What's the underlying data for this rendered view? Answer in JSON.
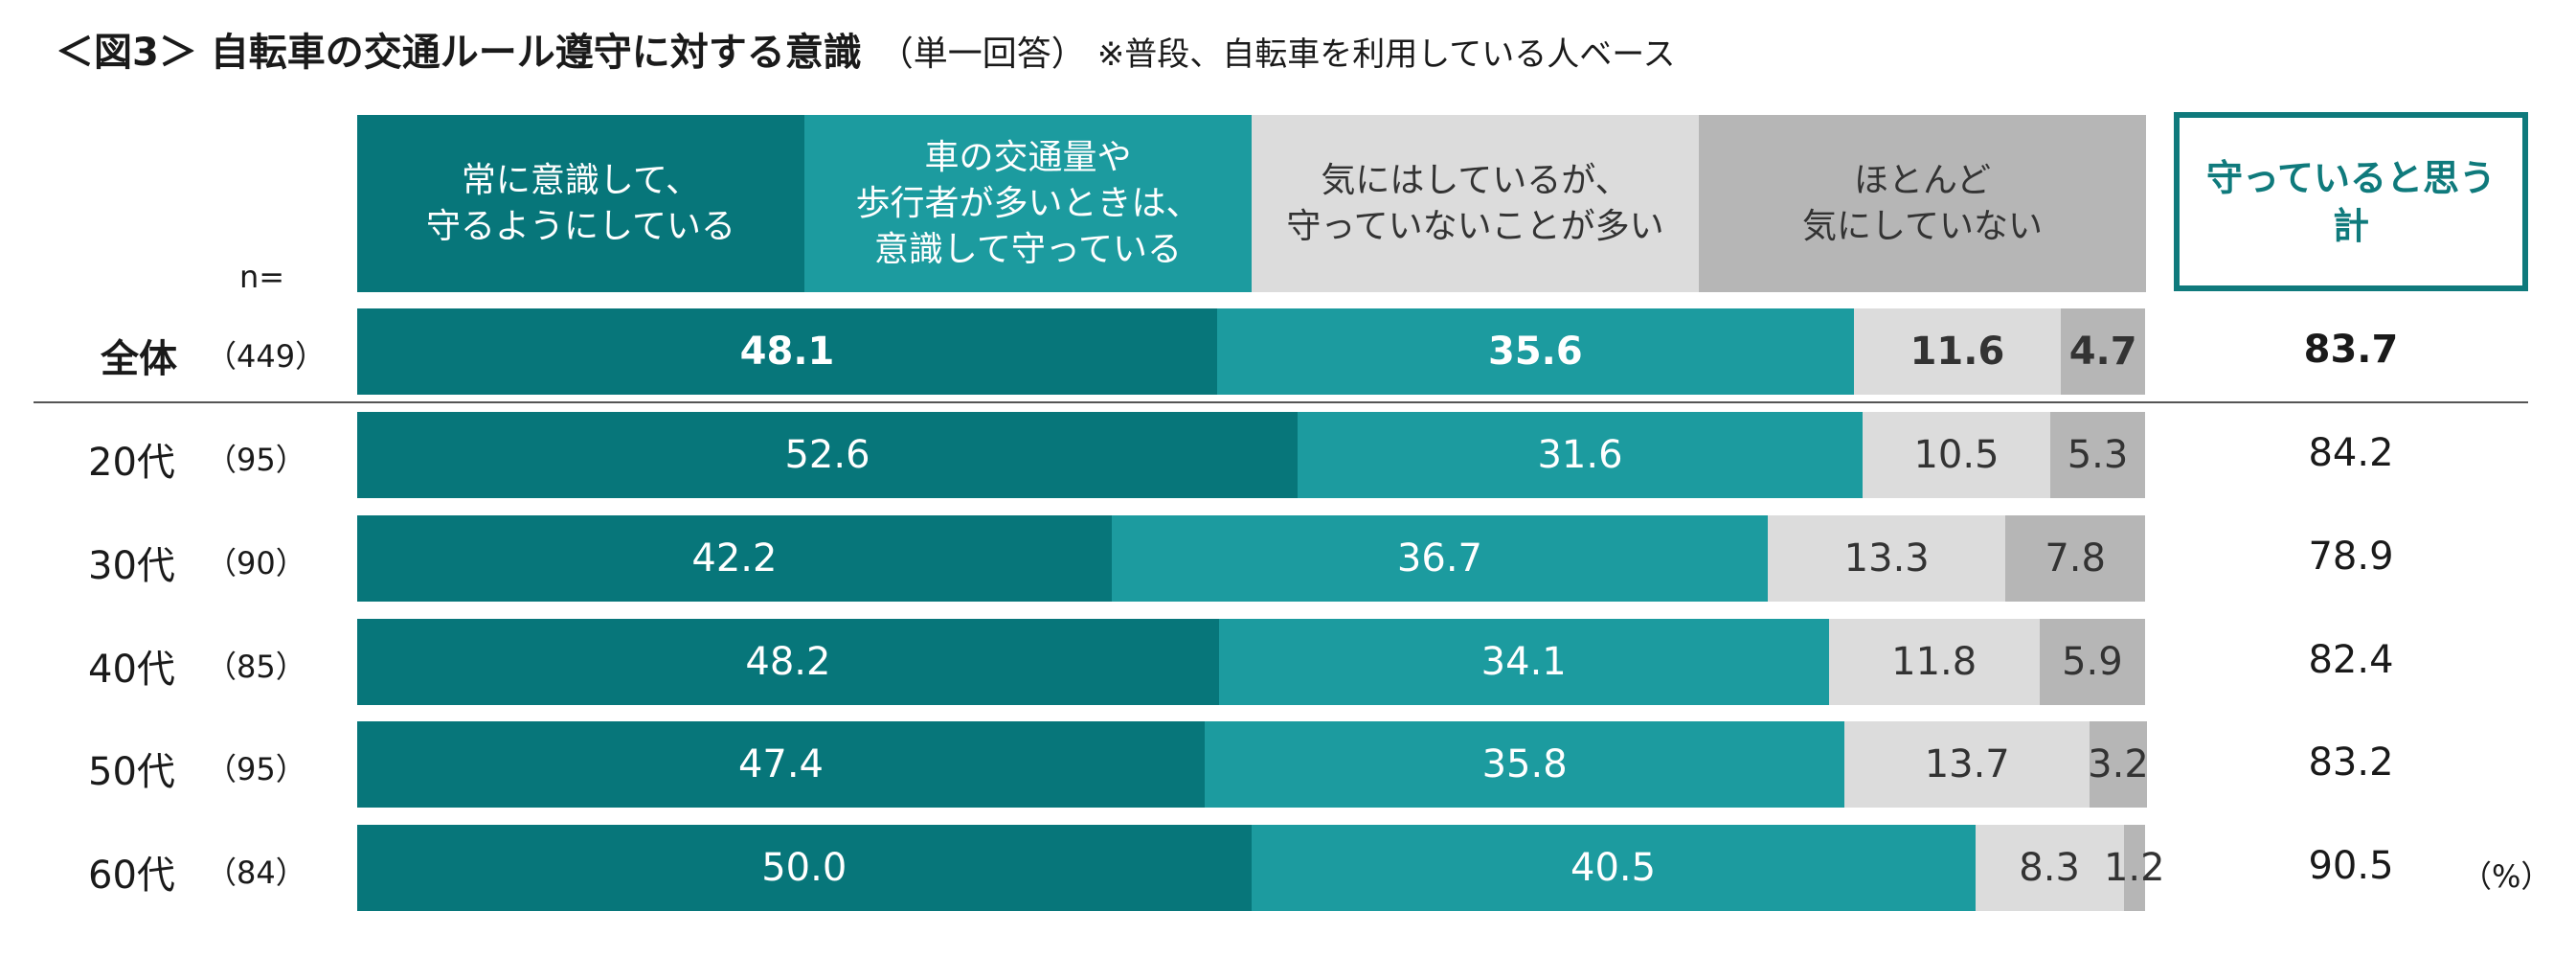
{
  "title": {
    "main": "＜図3＞ 自転車の交通ルール遵守に対する意識",
    "sub": "（単一回答）",
    "note": "※普段、自転車を利用している人ベース"
  },
  "n_label": "n=",
  "total_header": "守っていると思う\n計",
  "unit": "（%）",
  "colors": {
    "seg1": "#07767a",
    "seg2": "#1c9b9f",
    "seg3": "#dcdcdc",
    "seg4": "#b6b6b6",
    "accent": "#0f7a7c"
  },
  "chart_data": {
    "type": "bar",
    "orientation": "horizontal",
    "stacked": true,
    "xlim": [
      0,
      100
    ],
    "legend": [
      "常に意識して、\n守るようにしている",
      "車の交通量や\n歩行者が多いときは、\n意識して守っている",
      "気にはしているが、\n守っていないことが多い",
      "ほとんど\n気にしていない"
    ],
    "categories": [
      "全体",
      "20代",
      "30代",
      "40代",
      "50代",
      "60代"
    ],
    "n": [
      "（449）",
      "（95）",
      "（90）",
      "（85）",
      "（95）",
      "（84）"
    ],
    "series": [
      {
        "name": "常に意識して、守るようにしている",
        "values": [
          "48.1",
          "52.6",
          "42.2",
          "48.2",
          "47.4",
          "50.0"
        ]
      },
      {
        "name": "車の交通量や歩行者が多いときは、意識して守っている",
        "values": [
          "35.6",
          "31.6",
          "36.7",
          "34.1",
          "35.8",
          "40.5"
        ]
      },
      {
        "name": "気にはしているが、守っていないことが多い",
        "values": [
          "11.6",
          "10.5",
          "13.3",
          "11.8",
          "13.7",
          "8.3"
        ]
      },
      {
        "name": "ほとんど気にしていない",
        "values": [
          "4.7",
          "5.3",
          "7.8",
          "5.9",
          "3.2",
          "1.2"
        ]
      }
    ],
    "totals": [
      "83.7",
      "84.2",
      "78.9",
      "82.4",
      "83.2",
      "90.5"
    ]
  }
}
